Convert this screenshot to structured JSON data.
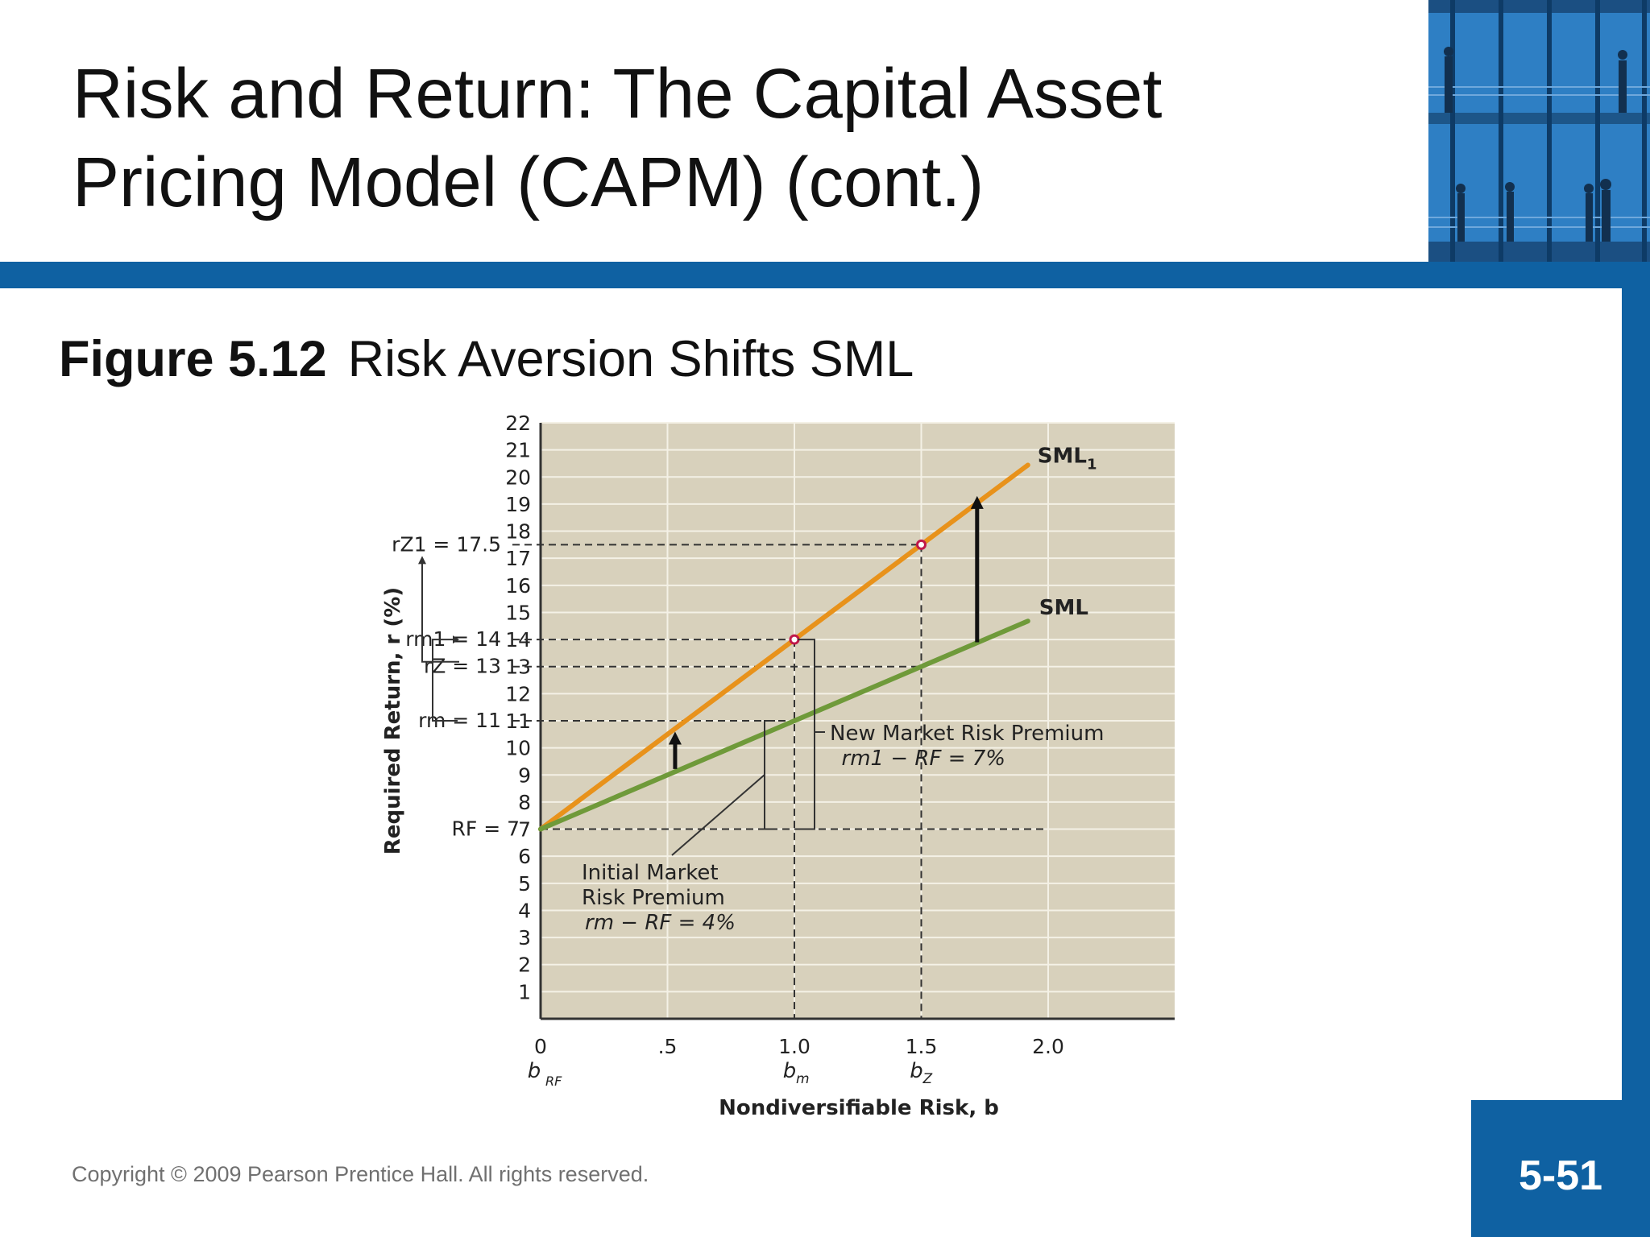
{
  "slide": {
    "title": "Risk and Return: The Capital Asset Pricing Model (CAPM) (cont.)",
    "figure_number": "Figure 5.12",
    "figure_title": "Risk Aversion Shifts SML",
    "copyright": "Copyright © 2009 Pearson Prentice Hall. All rights reserved.",
    "page_number": "5-51",
    "colors": {
      "brand_blue": "#0f61a2",
      "sml1": "#e8921b",
      "sml": "#6f9a3a",
      "plot_bg": "#d8d1bc"
    }
  },
  "chart_data": {
    "type": "line",
    "xlabel": "Nondiversifiable Risk, b",
    "ylabel": "Required Return, r (%)",
    "xlim": [
      0,
      2.5
    ],
    "ylim": [
      0,
      22
    ],
    "grid": true,
    "x_ticks": [
      {
        "v": 0,
        "label": "0"
      },
      {
        "v": 0.5,
        "label": ".5"
      },
      {
        "v": 1,
        "label": "1.0"
      },
      {
        "v": 1.5,
        "label": "1.5"
      },
      {
        "v": 2,
        "label": "2.0"
      }
    ],
    "y_ticks": [
      1,
      2,
      3,
      4,
      5,
      6,
      7,
      8,
      9,
      10,
      11,
      12,
      13,
      14,
      15,
      16,
      17,
      18,
      19,
      20,
      21,
      22
    ],
    "series": [
      {
        "name": "SML1",
        "x": [
          0,
          1,
          1.5,
          1.92
        ],
        "y": [
          7,
          14,
          17.5,
          20.44
        ],
        "color": "#e8921b"
      },
      {
        "name": "SML",
        "x": [
          0,
          1,
          1.5,
          1.92
        ],
        "y": [
          7,
          11,
          13,
          14.68
        ],
        "color": "#6f9a3a"
      }
    ],
    "points": [
      {
        "x": 1,
        "y": 14
      },
      {
        "x": 1.5,
        "y": 17.5
      }
    ],
    "y_annotations": {
      "rz1": "rZ1 = 17.5",
      "rm1": "rm1 = 14",
      "rz": "rZ = 13",
      "rm": "rm = 11",
      "rf": "RF = 7"
    },
    "x_annotations": {
      "b_rf": "bRF",
      "b_m": "bm",
      "b_z": "bZ"
    },
    "annotations": {
      "new_premium_title": "New Market Risk Premium",
      "new_premium_formula": "rm1 − RF = 7%",
      "initial_line1": "Initial Market",
      "initial_line2": "Risk Premium",
      "initial_formula": "rm − RF = 4%"
    }
  }
}
